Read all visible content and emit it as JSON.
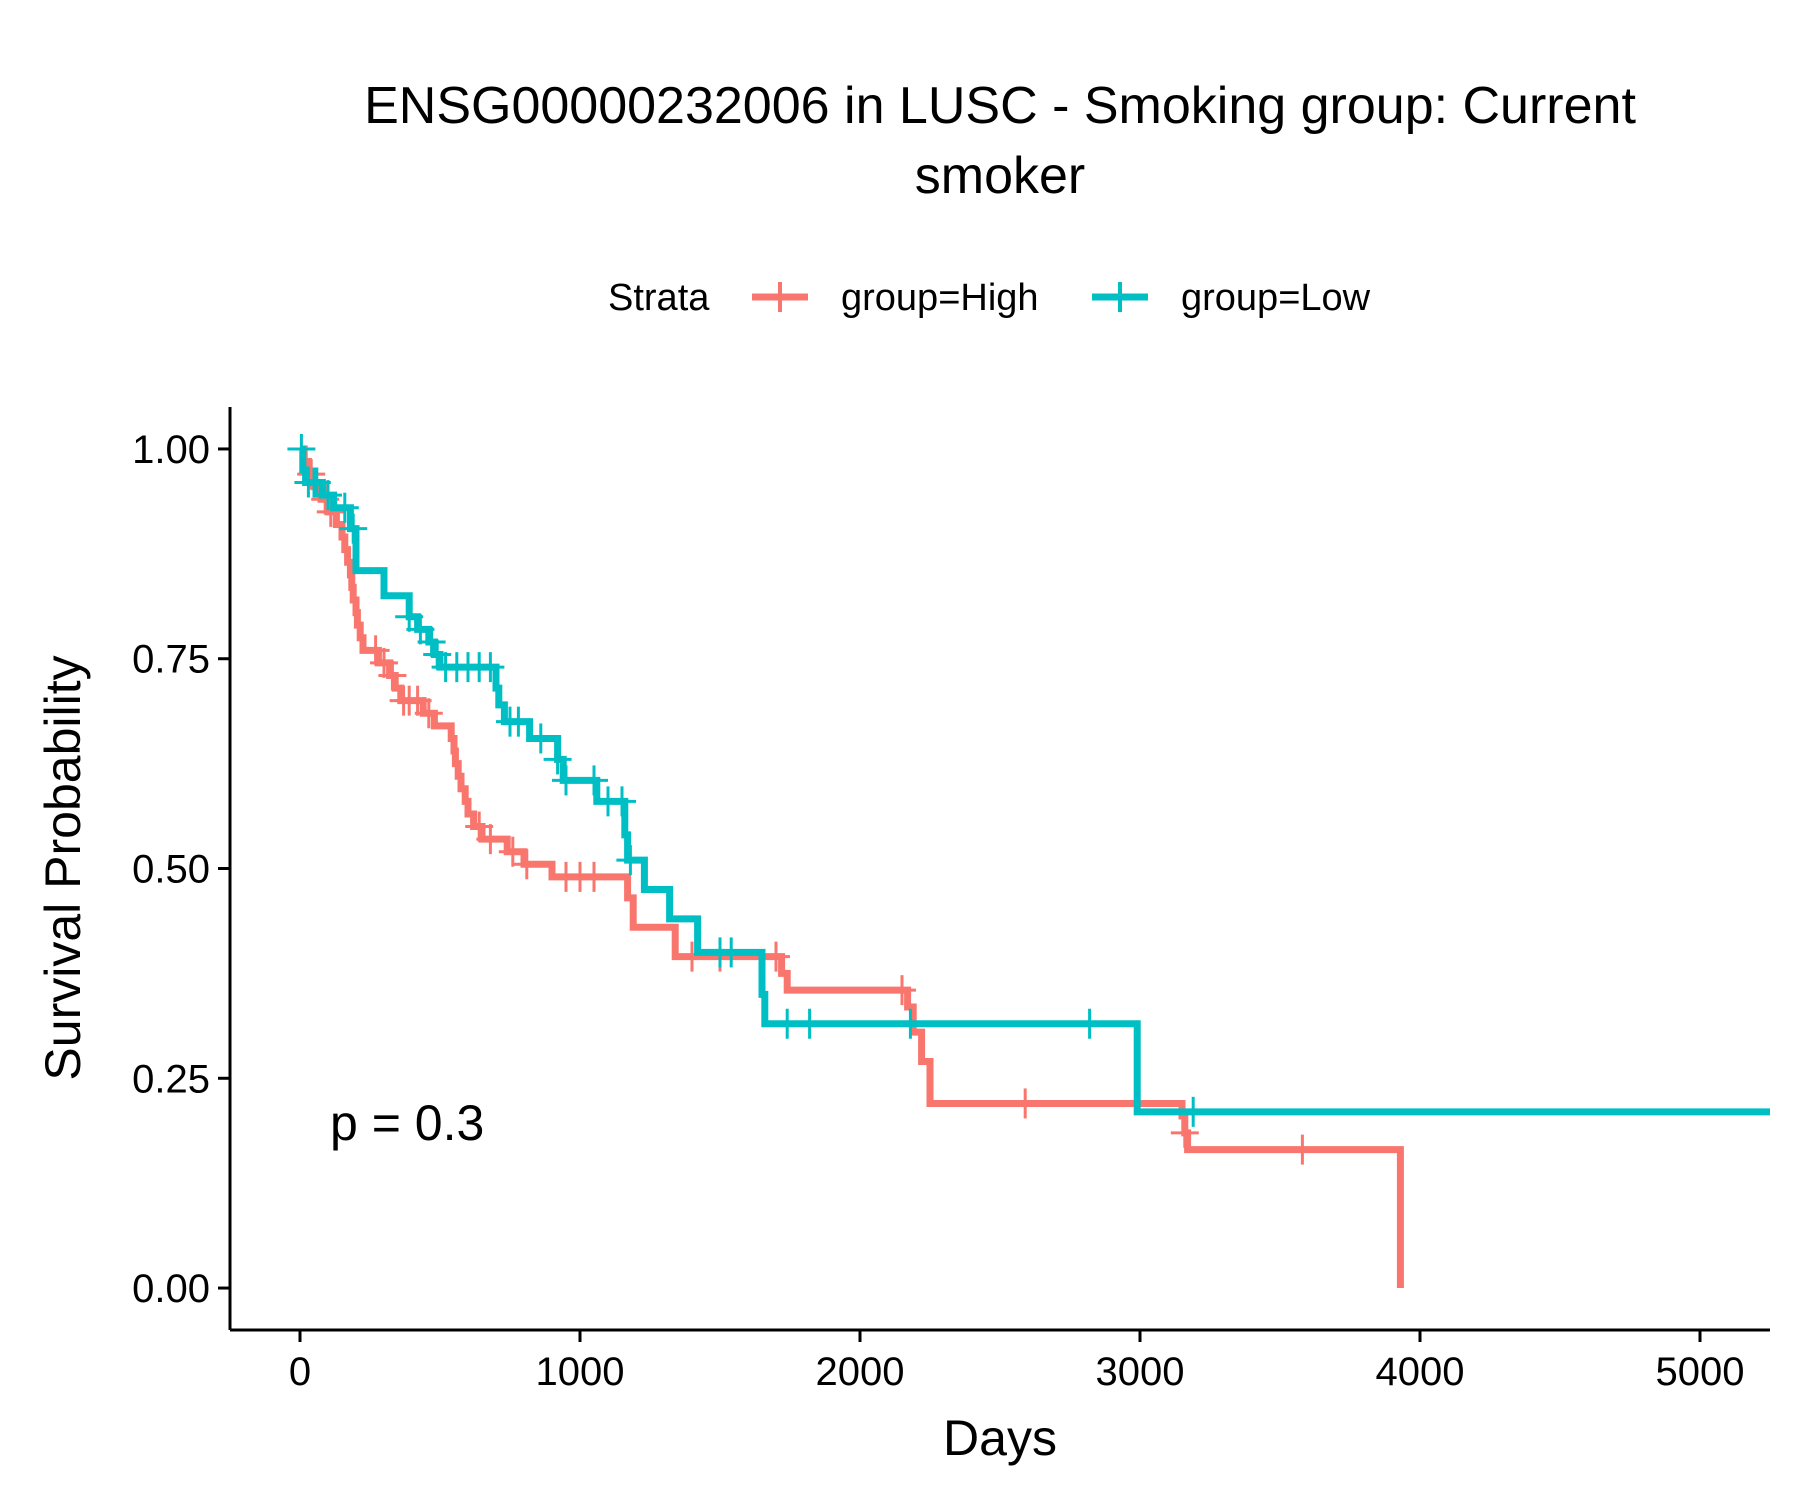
{
  "chart_data": {
    "type": "line",
    "title_lines": [
      "ENSG00000232006 in LUSC - Smoking group: Current",
      "smoker"
    ],
    "xlabel": "Days",
    "ylabel": "Survival Probability",
    "xlim": [
      -250,
      5250
    ],
    "ylim": [
      -0.05,
      1.05
    ],
    "x_ticks": [
      0,
      1000,
      2000,
      3000,
      4000,
      5000
    ],
    "x_tick_labels": [
      "0",
      "1000",
      "2000",
      "3000",
      "4000",
      "5000"
    ],
    "y_ticks": [
      0,
      0.25,
      0.5,
      0.75,
      1.0
    ],
    "y_tick_labels": [
      "0.00",
      "0.25",
      "0.50",
      "0.75",
      "1.00"
    ],
    "grid": false,
    "legend": {
      "position": "top",
      "title": "Strata",
      "entries": [
        "group=High",
        "group=Low"
      ]
    },
    "annotation": "p = 0.3",
    "series": [
      {
        "name": "group=High",
        "color": "#F8766D",
        "steps": [
          [
            0,
            1.0
          ],
          [
            15,
            0.985
          ],
          [
            30,
            0.97
          ],
          [
            50,
            0.955
          ],
          [
            75,
            0.94
          ],
          [
            100,
            0.925
          ],
          [
            130,
            0.91
          ],
          [
            150,
            0.895
          ],
          [
            160,
            0.88
          ],
          [
            170,
            0.865
          ],
          [
            180,
            0.85
          ],
          [
            185,
            0.835
          ],
          [
            190,
            0.82
          ],
          [
            200,
            0.805
          ],
          [
            205,
            0.79
          ],
          [
            215,
            0.775
          ],
          [
            225,
            0.76
          ],
          [
            280,
            0.745
          ],
          [
            320,
            0.73
          ],
          [
            340,
            0.715
          ],
          [
            360,
            0.7
          ],
          [
            440,
            0.685
          ],
          [
            480,
            0.67
          ],
          [
            540,
            0.655
          ],
          [
            550,
            0.64
          ],
          [
            555,
            0.625
          ],
          [
            565,
            0.61
          ],
          [
            575,
            0.595
          ],
          [
            590,
            0.58
          ],
          [
            600,
            0.565
          ],
          [
            620,
            0.55
          ],
          [
            650,
            0.535
          ],
          [
            740,
            0.52
          ],
          [
            800,
            0.505
          ],
          [
            900,
            0.49
          ],
          [
            1170,
            0.465
          ],
          [
            1190,
            0.43
          ],
          [
            1340,
            0.395
          ],
          [
            1720,
            0.375
          ],
          [
            1740,
            0.355
          ],
          [
            2170,
            0.335
          ],
          [
            2190,
            0.305
          ],
          [
            2220,
            0.27
          ],
          [
            2250,
            0.22
          ],
          [
            3150,
            0.205
          ],
          [
            3160,
            0.185
          ],
          [
            3170,
            0.165
          ],
          [
            3930,
            0.0
          ]
        ],
        "censor_x": [
          40,
          90,
          110,
          270,
          300,
          330,
          370,
          390,
          420,
          460,
          640,
          680,
          760,
          810,
          950,
          1000,
          1050,
          1400,
          1500,
          1700,
          2150,
          2590,
          3160,
          3580
        ]
      },
      {
        "name": "group=Low",
        "color": "#00BFC4",
        "x_end": 5250,
        "steps": [
          [
            0,
            1.0
          ],
          [
            10,
            0.975
          ],
          [
            20,
            0.96
          ],
          [
            80,
            0.945
          ],
          [
            120,
            0.93
          ],
          [
            180,
            0.905
          ],
          [
            200,
            0.855
          ],
          [
            300,
            0.825
          ],
          [
            390,
            0.8
          ],
          [
            420,
            0.785
          ],
          [
            460,
            0.77
          ],
          [
            480,
            0.755
          ],
          [
            500,
            0.74
          ],
          [
            700,
            0.715
          ],
          [
            710,
            0.695
          ],
          [
            730,
            0.675
          ],
          [
            820,
            0.655
          ],
          [
            920,
            0.63
          ],
          [
            940,
            0.605
          ],
          [
            1060,
            0.58
          ],
          [
            1160,
            0.54
          ],
          [
            1170,
            0.51
          ],
          [
            1230,
            0.475
          ],
          [
            1320,
            0.44
          ],
          [
            1420,
            0.4
          ],
          [
            1650,
            0.35
          ],
          [
            1660,
            0.315
          ],
          [
            2990,
            0.21
          ]
        ],
        "censor_x": [
          5,
          30,
          50,
          60,
          100,
          160,
          190,
          390,
          430,
          470,
          490,
          520,
          560,
          600,
          640,
          680,
          750,
          780,
          860,
          920,
          950,
          1050,
          1100,
          1150,
          1180,
          1500,
          1540,
          1740,
          1820,
          2180,
          2820,
          3190
        ]
      }
    ]
  }
}
